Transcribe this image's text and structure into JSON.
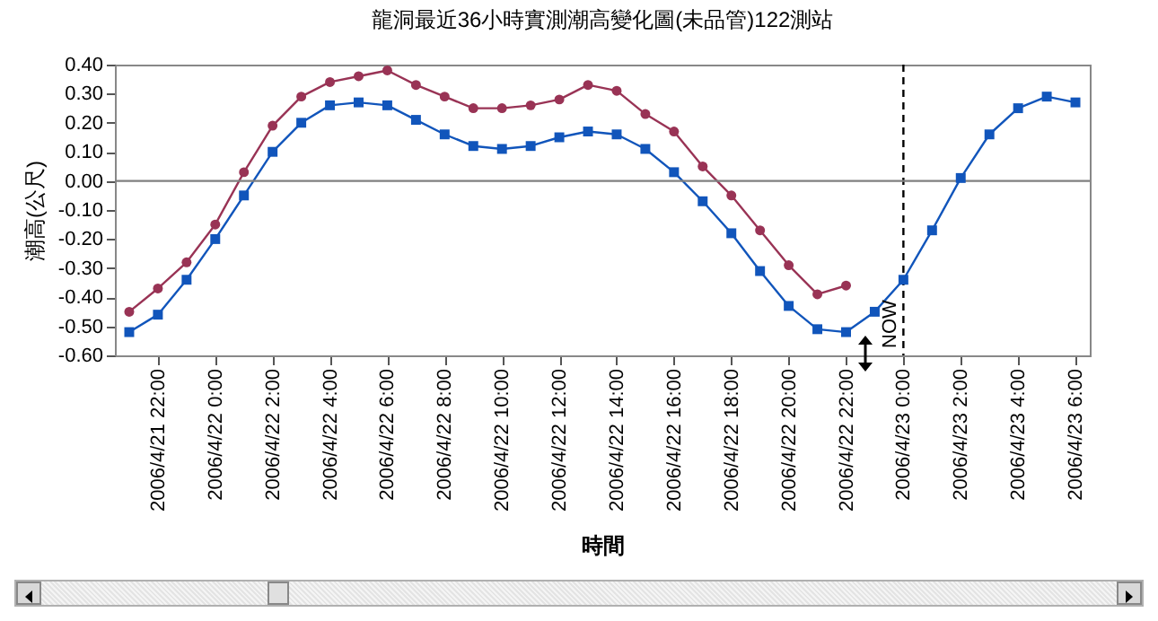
{
  "chart_data": {
    "type": "line",
    "title": "龍洞最近36小時實測潮高變化圖(未品管)122測站",
    "xlabel": "時間",
    "ylabel": "潮高(公尺)",
    "x": [
      "2006-04-21T21:00",
      "2006-04-21T22:00",
      "2006-04-21T23:00",
      "2006-04-22T00:00",
      "2006-04-22T01:00",
      "2006-04-22T02:00",
      "2006-04-22T03:00",
      "2006-04-22T04:00",
      "2006-04-22T05:00",
      "2006-04-22T06:00",
      "2006-04-22T07:00",
      "2006-04-22T08:00",
      "2006-04-22T09:00",
      "2006-04-22T10:00",
      "2006-04-22T11:00",
      "2006-04-22T12:00",
      "2006-04-22T13:00",
      "2006-04-22T14:00",
      "2006-04-22T15:00",
      "2006-04-22T16:00",
      "2006-04-22T17:00",
      "2006-04-22T18:00",
      "2006-04-22T19:00",
      "2006-04-22T20:00",
      "2006-04-22T21:00",
      "2006-04-22T22:00",
      "2006-04-22T23:00",
      "2006-04-23T00:00",
      "2006-04-23T01:00",
      "2006-04-23T02:00",
      "2006-04-23T03:00",
      "2006-04-23T04:00",
      "2006-04-23T05:00",
      "2006-04-23T06:00"
    ],
    "series": [
      {
        "color": "#993355",
        "marker": "circle",
        "values": [
          -0.45,
          -0.37,
          -0.28,
          -0.15,
          0.03,
          0.19,
          0.29,
          0.34,
          0.36,
          0.38,
          0.33,
          0.29,
          0.25,
          0.25,
          0.26,
          0.28,
          0.33,
          0.31,
          0.23,
          0.17,
          0.05,
          -0.05,
          -0.17,
          -0.29,
          -0.39,
          -0.36,
          null,
          null,
          null,
          null,
          null,
          null,
          null,
          null
        ]
      },
      {
        "color": "#1155bb",
        "marker": "square",
        "values": [
          -0.52,
          -0.46,
          -0.34,
          -0.2,
          -0.05,
          0.1,
          0.2,
          0.26,
          0.27,
          0.26,
          0.21,
          0.16,
          0.12,
          0.11,
          0.12,
          0.15,
          0.17,
          0.16,
          0.11,
          0.03,
          -0.07,
          -0.18,
          -0.31,
          -0.43,
          -0.51,
          -0.52,
          -0.45,
          -0.34,
          -0.17,
          0.01,
          0.16,
          0.25,
          0.29,
          0.27
        ]
      }
    ],
    "xlim": [
      "2006-04-21T20:30",
      "2006-04-23T06:30"
    ],
    "xticks": [
      {
        "value": "2006-04-21T22:00",
        "label": "2006/4/21 22:00"
      },
      {
        "value": "2006-04-22T00:00",
        "label": "2006/4/22 0:00"
      },
      {
        "value": "2006-04-22T02:00",
        "label": "2006/4/22 2:00"
      },
      {
        "value": "2006-04-22T04:00",
        "label": "2006/4/22 4:00"
      },
      {
        "value": "2006-04-22T06:00",
        "label": "2006/4/22 6:00"
      },
      {
        "value": "2006-04-22T08:00",
        "label": "2006/4/22 8:00"
      },
      {
        "value": "2006-04-22T10:00",
        "label": "2006/4/22 10:00"
      },
      {
        "value": "2006-04-22T12:00",
        "label": "2006/4/22 12:00"
      },
      {
        "value": "2006-04-22T14:00",
        "label": "2006/4/22 14:00"
      },
      {
        "value": "2006-04-22T16:00",
        "label": "2006/4/22 16:00"
      },
      {
        "value": "2006-04-22T18:00",
        "label": "2006/4/22 18:00"
      },
      {
        "value": "2006-04-22T20:00",
        "label": "2006/4/22 20:00"
      },
      {
        "value": "2006-04-22T22:00",
        "label": "2006/4/22 22:00"
      },
      {
        "value": "2006-04-23T00:00",
        "label": "2006/4/23 0:00"
      },
      {
        "value": "2006-04-23T02:00",
        "label": "2006/4/23 2:00"
      },
      {
        "value": "2006-04-23T04:00",
        "label": "2006/4/23 4:00"
      },
      {
        "value": "2006-04-23T06:00",
        "label": "2006/4/23 6:00"
      }
    ],
    "ylim": [
      -0.6,
      0.4
    ],
    "yticks": [
      {
        "value": 0.4,
        "label": "0.40"
      },
      {
        "value": 0.3,
        "label": "0.30"
      },
      {
        "value": 0.2,
        "label": "0.20"
      },
      {
        "value": 0.1,
        "label": "0.10"
      },
      {
        "value": 0,
        "label": "0.00"
      },
      {
        "value": -0.1,
        "label": "-0.10"
      },
      {
        "value": -0.2,
        "label": "-0.20"
      },
      {
        "value": -0.3,
        "label": "-0.30"
      },
      {
        "value": -0.4,
        "label": "-0.40"
      },
      {
        "value": -0.5,
        "label": "-0.50"
      },
      {
        "value": -0.6,
        "label": "-0.60"
      }
    ],
    "ref_lines": [
      {
        "axis": "x",
        "value": "2006-04-23T00:00",
        "label": "NOW",
        "color": "#000000",
        "line_style": "dashed"
      },
      {
        "axis": "y",
        "value": 0,
        "color": "#808080",
        "line_style": "solid"
      }
    ],
    "grid": false,
    "legend": false,
    "line_style": "solid"
  }
}
